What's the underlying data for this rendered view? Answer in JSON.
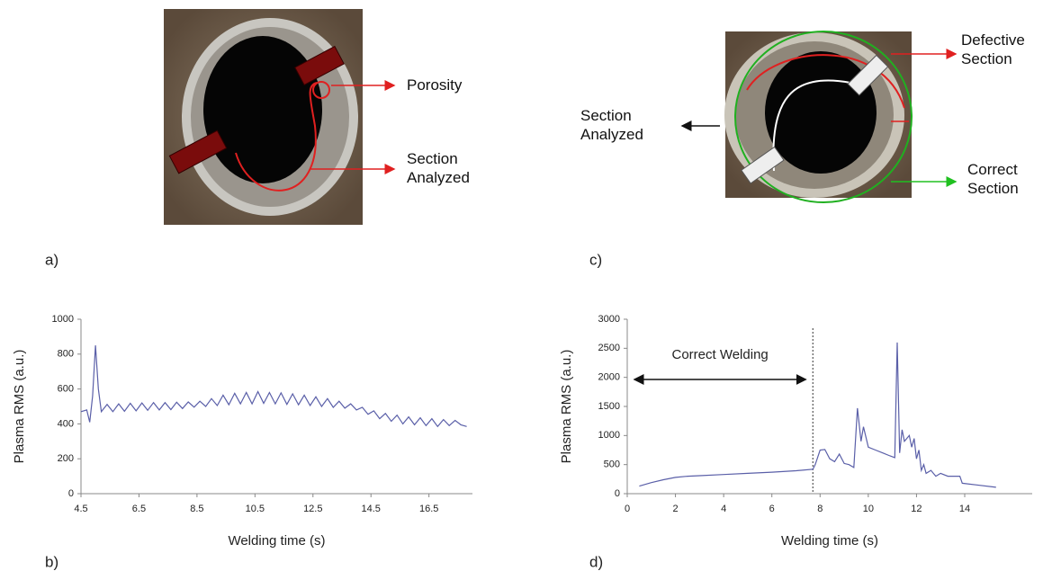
{
  "chart_data": [
    {
      "type": "line",
      "panel": "b)",
      "xlabel": "Welding time (s)",
      "ylabel": "Plasma RMS (a.u.)",
      "x": [
        4.5,
        4.7,
        4.8,
        4.9,
        5.0,
        5.1,
        5.2,
        5.4,
        5.6,
        5.8,
        6.0,
        6.2,
        6.4,
        6.6,
        6.8,
        7.0,
        7.2,
        7.4,
        7.6,
        7.8,
        8.0,
        8.2,
        8.4,
        8.6,
        8.8,
        9.0,
        9.2,
        9.4,
        9.6,
        9.8,
        10.0,
        10.2,
        10.4,
        10.6,
        10.8,
        11.0,
        11.2,
        11.4,
        11.6,
        11.8,
        12.0,
        12.2,
        12.4,
        12.6,
        12.8,
        13.0,
        13.2,
        13.4,
        13.6,
        13.8,
        14.0,
        14.2,
        14.4,
        14.6,
        14.8,
        15.0,
        15.2,
        15.4,
        15.6,
        15.8,
        16.0,
        16.2,
        16.4,
        16.6,
        16.8,
        17.0,
        17.2,
        17.4,
        17.6,
        17.8
      ],
      "values": [
        470,
        480,
        410,
        560,
        850,
        600,
        470,
        512,
        470,
        515,
        472,
        518,
        475,
        520,
        478,
        522,
        480,
        522,
        482,
        524,
        488,
        526,
        496,
        530,
        500,
        545,
        505,
        565,
        510,
        575,
        515,
        580,
        515,
        585,
        518,
        580,
        515,
        578,
        512,
        572,
        510,
        565,
        505,
        555,
        500,
        545,
        495,
        530,
        490,
        515,
        480,
        495,
        455,
        475,
        430,
        460,
        415,
        450,
        400,
        440,
        395,
        435,
        390,
        430,
        385,
        425,
        390,
        420,
        395,
        385
      ],
      "color": "#5a5fa8",
      "xlim": [
        4.5,
        18
      ],
      "xticks": [
        4.5,
        6.5,
        8.5,
        10.5,
        12.5,
        14.5,
        16.5
      ],
      "ylim": [
        0,
        1000
      ],
      "yticks": [
        0,
        200,
        400,
        600,
        800,
        1000
      ]
    },
    {
      "type": "line",
      "panel": "d)",
      "xlabel": "Welding time (s)",
      "ylabel": "Plasma RMS (a.u.)",
      "x": [
        0.5,
        1,
        1.5,
        2,
        2.5,
        3,
        4,
        5,
        6,
        7,
        7.7,
        7.8,
        8.0,
        8.2,
        8.4,
        8.6,
        8.8,
        9.0,
        9.2,
        9.4,
        9.55,
        9.7,
        9.8,
        10.0,
        10.3,
        10.6,
        10.9,
        11.1,
        11.2,
        11.3,
        11.4,
        11.5,
        11.7,
        11.8,
        11.9,
        12.0,
        12.1,
        12.2,
        12.3,
        12.4,
        12.6,
        12.8,
        13.0,
        13.3,
        13.8,
        13.9,
        14.5,
        15.3
      ],
      "values": [
        130,
        190,
        240,
        280,
        300,
        310,
        330,
        350,
        370,
        395,
        420,
        500,
        750,
        760,
        600,
        550,
        680,
        520,
        500,
        450,
        1470,
        900,
        1150,
        800,
        750,
        700,
        650,
        620,
        2600,
        700,
        1100,
        900,
        1000,
        800,
        950,
        600,
        750,
        400,
        500,
        350,
        400,
        300,
        350,
        300,
        300,
        180,
        150,
        110
      ],
      "color": "#5a5fa8",
      "xlim": [
        0,
        16.8
      ],
      "xticks": [
        0,
        2,
        4,
        6,
        8,
        10,
        12,
        14
      ],
      "ylim": [
        0,
        3000
      ],
      "yticks": [
        0,
        500,
        1000,
        1500,
        2000,
        2500,
        3000
      ],
      "vline": 7.7,
      "annotation": "Correct Welding"
    }
  ],
  "panels": [
    {
      "label": "a)",
      "annotations": [
        "Porosity",
        "Section Analyzed"
      ]
    },
    {
      "label": "c)",
      "annotations": [
        "Defective Section",
        "Section Analyzed",
        "Correct Section"
      ]
    }
  ]
}
